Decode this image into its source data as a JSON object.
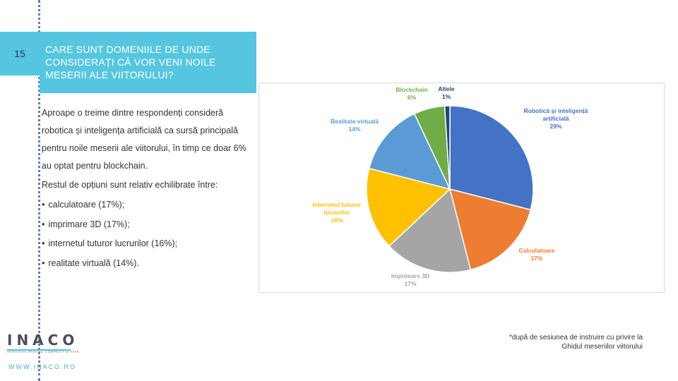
{
  "slide": {
    "number": "15",
    "title": "CARE SUNT DOMENIILE DE UNDE CONSIDERAȚI CĂ VOR VENI NOILE MESERII ALE VIITORULUI?"
  },
  "body": {
    "paragraph1": "Aproape o treime dintre respondenți consideră robotica și inteligența artificială ca sursă principală pentru noile meserii ale viitorului, în timp ce doar 6% au optat pentru blockchain.",
    "paragraph2": "Restul de opțiuni sunt relativ echilibrate între:",
    "bullets": [
      "calculatoare (17%);",
      "imprimare 3D (17%);",
      "internetul tuturor lucrurilor (16%);",
      "realitate virtuală (14%)."
    ]
  },
  "footnote": {
    "line1": "*după de sesiunea de instruire cu privire la",
    "line2": "Ghidul meseriilor viitorului"
  },
  "logo": {
    "word": "INACO",
    "tagline": "INITIATIVA PENTRU COMPETITIVITATE",
    "website": "WWW.INACO.RO"
  },
  "chart_data": {
    "type": "pie",
    "slices": [
      {
        "label": "Robotică și inteligență artificială",
        "value": 29,
        "display": "29%",
        "color": "#4472c4"
      },
      {
        "label": "Calculatoare",
        "value": 17,
        "display": "17%",
        "color": "#ed7d31"
      },
      {
        "label": "Imprimare 3D",
        "value": 17,
        "display": "17%",
        "color": "#a5a5a5"
      },
      {
        "label": "Internetul tuturor lucrurilor",
        "value": 16,
        "display": "16%",
        "color": "#ffc000"
      },
      {
        "label": "Realitate virtuală",
        "value": 14,
        "display": "14%",
        "color": "#5b9bd5"
      },
      {
        "label": "Blockchain",
        "value": 6,
        "display": "6%",
        "color": "#70ad47"
      },
      {
        "label": "Altele",
        "value": 1,
        "display": "1%",
        "color": "#264478"
      }
    ],
    "label_colors": {
      "Robotică și inteligență artificială": "#4472c4",
      "Calculatoare": "#ed7d31",
      "Imprimare 3D": "#a5a5a5",
      "Internetul tuturor lucrurilor": "#ffc000",
      "Realitate virtuală": "#5b9bd5",
      "Blockchain": "#70ad47",
      "Altele": "#264478"
    }
  }
}
